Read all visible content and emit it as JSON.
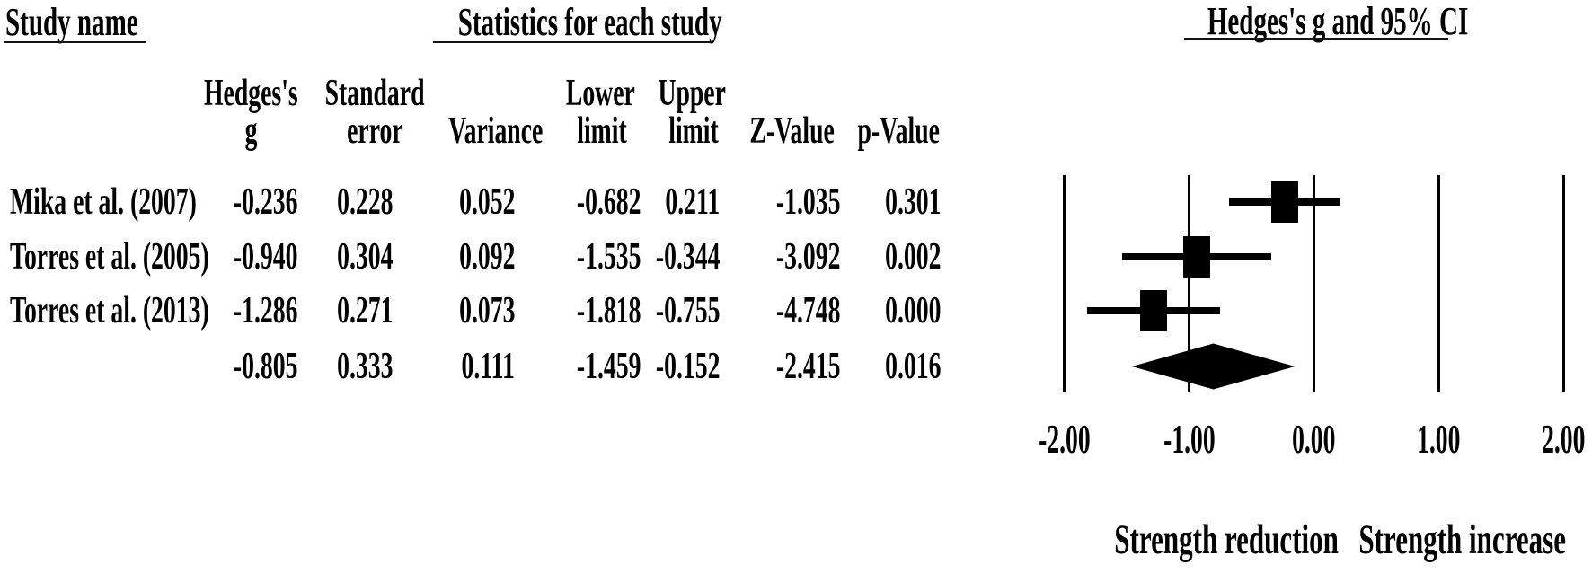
{
  "figure": {
    "background": "#ffffff",
    "ink_color": "#000000"
  },
  "table": {
    "study_col_title": "Study name",
    "title": "Statistics for each study",
    "columns": [
      {
        "label_line1": "Hedges's",
        "label_line2": "g"
      },
      {
        "label_line1": "Standard",
        "label_line2": "error"
      },
      {
        "label_line1": "",
        "label_line2": "Variance"
      },
      {
        "label_line1": "Lower",
        "label_line2": "limit"
      },
      {
        "label_line1": "Upper",
        "label_line2": "limit"
      },
      {
        "label_line1": "",
        "label_line2": "Z-Value"
      },
      {
        "label_line1": "",
        "label_line2": "p-Value"
      }
    ],
    "rows": [
      {
        "study": "Mika et al. (2007)",
        "values": [
          "-0.236",
          "0.228",
          "0.052",
          "-0.682",
          "0.211",
          "-1.035",
          "0.301"
        ],
        "summary": false
      },
      {
        "study": "Torres et al. (2005)",
        "values": [
          "-0.940",
          "0.304",
          "0.092",
          "-1.535",
          "-0.344",
          "-3.092",
          "0.002"
        ],
        "summary": false
      },
      {
        "study": "Torres et al. (2013)",
        "values": [
          "-1.286",
          "0.271",
          "0.073",
          "-1.818",
          "-0.755",
          "-4.748",
          "0.000"
        ],
        "summary": false
      },
      {
        "study": "",
        "values": [
          "-0.805",
          "0.333",
          "0.111",
          "-1.459",
          "-0.152",
          "-2.415",
          "0.016"
        ],
        "summary": true
      }
    ]
  },
  "chart_data": {
    "type": "forest",
    "title": "Hedges's g and 95% CI",
    "effect_measure": "Hedges's g",
    "xlim": [
      -2.0,
      2.0
    ],
    "ticks": [
      -2.0,
      -1.0,
      0.0,
      1.0,
      2.0
    ],
    "tick_labels": [
      "-2.00",
      "-1.00",
      "0.00",
      "1.00",
      "2.00"
    ],
    "grid": true,
    "studies": [
      {
        "name": "Mika et al. (2007)",
        "g": -0.236,
        "lower": -0.682,
        "upper": 0.211
      },
      {
        "name": "Torres et al. (2005)",
        "g": -0.94,
        "lower": -1.535,
        "upper": -0.344
      },
      {
        "name": "Torres et al. (2013)",
        "g": -1.286,
        "lower": -1.818,
        "upper": -0.755
      }
    ],
    "summary": {
      "g": -0.805,
      "lower": -1.459,
      "upper": -0.152
    },
    "axis_annotations": {
      "left": "Strength reduction",
      "right": "Strength increase"
    }
  }
}
